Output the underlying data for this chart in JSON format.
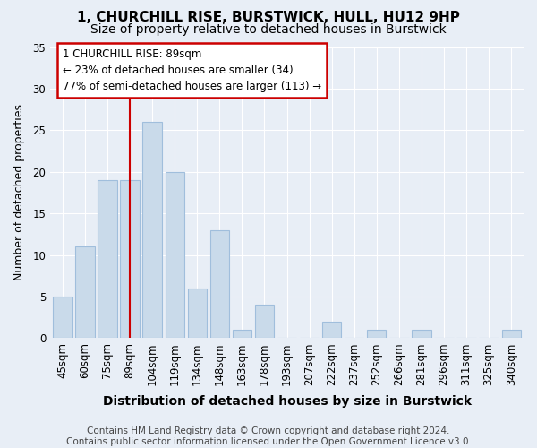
{
  "title": "1, CHURCHILL RISE, BURSTWICK, HULL, HU12 9HP",
  "subtitle": "Size of property relative to detached houses in Burstwick",
  "xlabel": "Distribution of detached houses by size in Burstwick",
  "ylabel": "Number of detached properties",
  "categories": [
    "45sqm",
    "60sqm",
    "75sqm",
    "89sqm",
    "104sqm",
    "119sqm",
    "134sqm",
    "148sqm",
    "163sqm",
    "178sqm",
    "193sqm",
    "207sqm",
    "222sqm",
    "237sqm",
    "252sqm",
    "266sqm",
    "281sqm",
    "296sqm",
    "311sqm",
    "325sqm",
    "340sqm"
  ],
  "values": [
    5,
    11,
    19,
    19,
    26,
    20,
    6,
    13,
    1,
    4,
    0,
    0,
    2,
    0,
    1,
    0,
    1,
    0,
    0,
    0,
    1
  ],
  "bar_color": "#c9daea",
  "bar_edge_color": "#a0bedc",
  "vline_x": 3,
  "vline_color": "#cc0000",
  "annotation_text": "1 CHURCHILL RISE: 89sqm\n← 23% of detached houses are smaller (34)\n77% of semi-detached houses are larger (113) →",
  "annotation_box_facecolor": "#ffffff",
  "annotation_box_edgecolor": "#cc0000",
  "ylim": [
    0,
    35
  ],
  "yticks": [
    0,
    5,
    10,
    15,
    20,
    25,
    30,
    35
  ],
  "bg_color": "#e8eef6",
  "plot_bg_color": "#e8eef6",
  "grid_color": "#ffffff",
  "footer": "Contains HM Land Registry data © Crown copyright and database right 2024.\nContains public sector information licensed under the Open Government Licence v3.0.",
  "title_fontsize": 11,
  "subtitle_fontsize": 10,
  "xlabel_fontsize": 10,
  "ylabel_fontsize": 9,
  "tick_fontsize": 8.5,
  "footer_fontsize": 7.5,
  "ann_fontsize": 8.5
}
